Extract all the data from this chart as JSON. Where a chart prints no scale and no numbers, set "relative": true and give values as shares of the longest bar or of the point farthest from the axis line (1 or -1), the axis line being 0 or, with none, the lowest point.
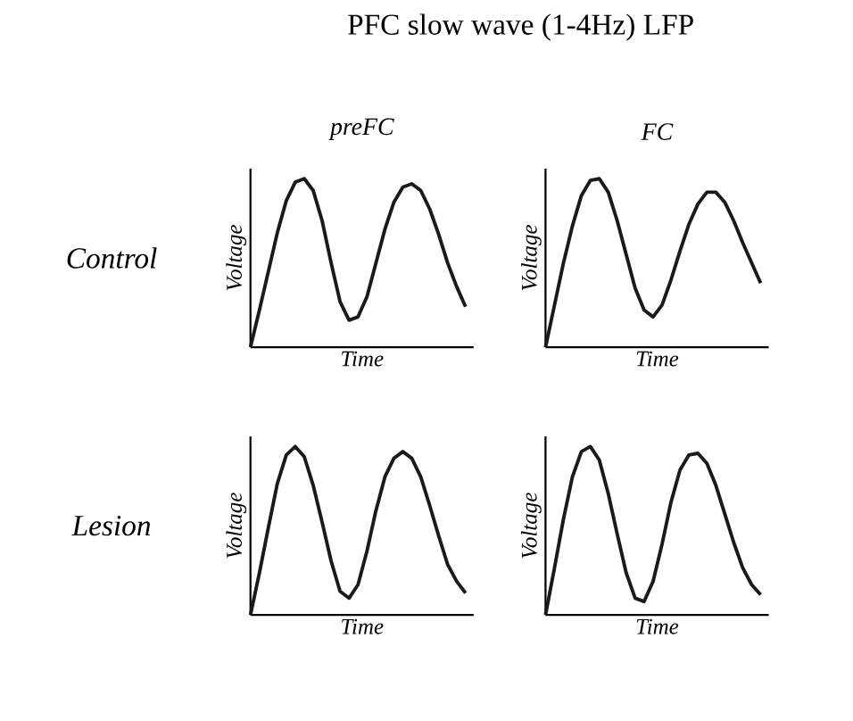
{
  "chart_data": [
    {
      "type": "line",
      "relative": true,
      "title": "PFC slow wave (1-4Hz) LFP",
      "subtitle": "preFC",
      "xlabel": "Time",
      "ylabel": "Voltage",
      "annotations": [
        "Control"
      ],
      "color": "#1a1a1a",
      "categories": [
        null,
        null,
        null,
        null,
        null,
        null,
        null,
        null,
        null,
        null,
        null,
        null,
        null,
        null,
        null,
        null,
        null,
        null,
        null,
        null,
        null,
        null,
        null,
        null,
        null
      ],
      "values": [
        0,
        0.22,
        0.45,
        0.68,
        0.87,
        0.98,
        1,
        0.93,
        0.75,
        0.5,
        0.27,
        0.16,
        0.18,
        0.3,
        0.5,
        0.7,
        0.86,
        0.95,
        0.97,
        0.93,
        0.82,
        0.67,
        0.5,
        0.36,
        0.24
      ]
    },
    {
      "type": "line",
      "relative": true,
      "subtitle": "FC",
      "xlabel": "Time",
      "ylabel": "Voltage",
      "color": "#1a1a1a",
      "categories": [
        null,
        null,
        null,
        null,
        null,
        null,
        null,
        null,
        null,
        null,
        null,
        null,
        null,
        null,
        null,
        null,
        null,
        null,
        null,
        null,
        null,
        null,
        null,
        null,
        null
      ],
      "values": [
        0,
        0.25,
        0.5,
        0.72,
        0.9,
        0.99,
        1,
        0.92,
        0.75,
        0.55,
        0.35,
        0.22,
        0.18,
        0.25,
        0.4,
        0.57,
        0.73,
        0.85,
        0.92,
        0.92,
        0.86,
        0.75,
        0.62,
        0.5,
        0.38
      ]
    },
    {
      "type": "line",
      "relative": true,
      "xlabel": "Time",
      "ylabel": "Voltage",
      "annotations": [
        "Lesion"
      ],
      "color": "#1a1a1a",
      "categories": [
        null,
        null,
        null,
        null,
        null,
        null,
        null,
        null,
        null,
        null,
        null,
        null,
        null,
        null,
        null,
        null,
        null,
        null,
        null,
        null,
        null,
        null,
        null,
        null,
        null
      ],
      "values": [
        0,
        0.25,
        0.52,
        0.78,
        0.95,
        1,
        0.94,
        0.77,
        0.55,
        0.32,
        0.14,
        0.1,
        0.18,
        0.38,
        0.62,
        0.82,
        0.93,
        0.97,
        0.93,
        0.82,
        0.65,
        0.47,
        0.3,
        0.2,
        0.13
      ]
    },
    {
      "type": "line",
      "relative": true,
      "xlabel": "Time",
      "ylabel": "Voltage",
      "color": "#1a1a1a",
      "categories": [
        null,
        null,
        null,
        null,
        null,
        null,
        null,
        null,
        null,
        null,
        null,
        null,
        null,
        null,
        null,
        null,
        null,
        null,
        null,
        null,
        null,
        null,
        null,
        null,
        null
      ],
      "values": [
        0,
        0.28,
        0.57,
        0.82,
        0.97,
        1,
        0.92,
        0.72,
        0.48,
        0.25,
        0.1,
        0.08,
        0.2,
        0.42,
        0.67,
        0.86,
        0.95,
        0.96,
        0.9,
        0.77,
        0.6,
        0.43,
        0.28,
        0.18,
        0.12
      ]
    }
  ]
}
